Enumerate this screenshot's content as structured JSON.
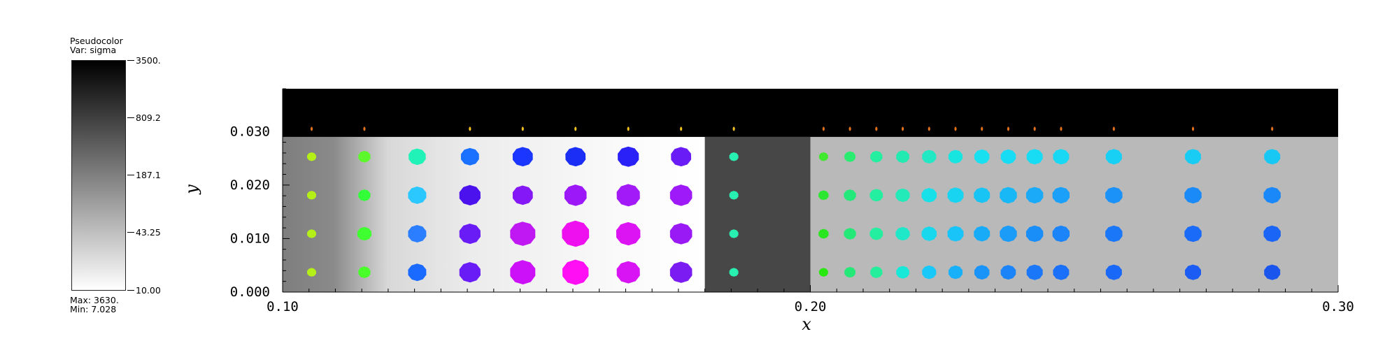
{
  "legend": {
    "title": "Pseudocolor",
    "var_label": "Var: sigma",
    "tick_labels": [
      "3500.",
      "809.2",
      "187.1",
      "43.25",
      "10.00"
    ],
    "max_label": "Max: 3630.",
    "min_label": "Min: 7.028"
  },
  "chart_data": {
    "type": "scatter",
    "title": "",
    "xlabel": "x",
    "ylabel": "y",
    "xlim": [
      0.1,
      0.3
    ],
    "ylim": [
      0.0,
      0.038
    ],
    "x_ticks": [
      "0.10",
      "0.20",
      "0.30"
    ],
    "y_ticks": [
      "0.000",
      "0.010",
      "0.020",
      "0.030"
    ],
    "grid": false,
    "background_regions": [
      {
        "x": [
          0.1,
          0.18
        ],
        "y": [
          0.0,
          0.029
        ],
        "fill": "gradient-gray-white"
      },
      {
        "x": [
          0.18,
          0.2
        ],
        "y": [
          0.0,
          0.029
        ],
        "fill": "#474747"
      },
      {
        "x": [
          0.2,
          0.3
        ],
        "y": [
          0.0,
          0.029
        ],
        "fill": "#b9b9b9"
      },
      {
        "x": [
          0.1,
          0.3
        ],
        "y": [
          0.029,
          0.038
        ],
        "fill": "#000000"
      }
    ],
    "columns": [
      {
        "x": 0.1055,
        "r": [
          0.9,
          0.9,
          0.9,
          0.9
        ],
        "colors": [
          "#b4f018",
          "#b4f018",
          "#b4f018",
          "#b4f018"
        ]
      },
      {
        "x": 0.1155,
        "r": [
          1.2,
          1.4,
          1.2,
          1.2
        ],
        "colors": [
          "#48ff2a",
          "#40ff30",
          "#32ff38",
          "#5cf82c"
        ]
      },
      {
        "x": 0.1255,
        "r": [
          1.8,
          1.8,
          1.8,
          1.7
        ],
        "colors": [
          "#1a6aff",
          "#2a7eff",
          "#2ac8ff",
          "#20f2b8"
        ]
      },
      {
        "x": 0.1355,
        "r": [
          2.1,
          2.1,
          2.1,
          1.8
        ],
        "colors": [
          "#6a1cf6",
          "#6a1cf6",
          "#4c12ee",
          "#1a70ff"
        ]
      },
      {
        "x": 0.1455,
        "r": [
          2.5,
          2.5,
          2.0,
          2.0
        ],
        "colors": [
          "#cc10f8",
          "#c018f2",
          "#8418f6",
          "#1a36ff"
        ]
      },
      {
        "x": 0.1555,
        "r": [
          2.6,
          2.7,
          2.2,
          2.0
        ],
        "colors": [
          "#ff10f4",
          "#ee10ee",
          "#9c18f8",
          "#1a2ef6"
        ]
      },
      {
        "x": 0.1655,
        "r": [
          2.3,
          2.4,
          2.3,
          2.1
        ],
        "colors": [
          "#d814f4",
          "#dc14f4",
          "#a21af8",
          "#2a20f8"
        ]
      },
      {
        "x": 0.1755,
        "r": [
          2.2,
          2.2,
          2.2,
          2.0
        ],
        "colors": [
          "#7a1cf2",
          "#9a1af6",
          "#9e1af8",
          "#6a1cf6"
        ]
      },
      {
        "x": 0.1855,
        "r": [
          0.9,
          0.9,
          0.9,
          0.9
        ],
        "colors": [
          "#28f0b0",
          "#28f0b0",
          "#28f0b0",
          "#28f0b0"
        ]
      },
      {
        "x": 0.2025,
        "r": [
          0.9,
          1.0,
          1.0,
          0.9
        ],
        "colors": [
          "#28e810",
          "#2ae61e",
          "#2ce630",
          "#40e830"
        ]
      },
      {
        "x": 0.2075,
        "r": [
          1.1,
          1.2,
          1.2,
          1.1
        ],
        "colors": [
          "#24e878",
          "#24e878",
          "#24e87a",
          "#2aec70"
        ]
      },
      {
        "x": 0.2125,
        "r": [
          1.2,
          1.3,
          1.3,
          1.2
        ],
        "colors": [
          "#24ee9c",
          "#24eea0",
          "#24eea0",
          "#24eea0"
        ]
      },
      {
        "x": 0.2175,
        "r": [
          1.3,
          1.4,
          1.4,
          1.3
        ],
        "colors": [
          "#18e8d8",
          "#1ee8c8",
          "#22eab8",
          "#22eab0"
        ]
      },
      {
        "x": 0.2225,
        "r": [
          1.4,
          1.5,
          1.5,
          1.4
        ],
        "colors": [
          "#18c8f8",
          "#18d8ee",
          "#18e0e8",
          "#22e8c4"
        ]
      },
      {
        "x": 0.2275,
        "r": [
          1.4,
          1.6,
          1.6,
          1.4
        ],
        "colors": [
          "#18b0f8",
          "#18c4f8",
          "#18d4f0",
          "#18e4e0"
        ]
      },
      {
        "x": 0.2325,
        "r": [
          1.5,
          1.6,
          1.6,
          1.5
        ],
        "colors": [
          "#1a94f8",
          "#18acf8",
          "#18c4f4",
          "#18e0f0"
        ]
      },
      {
        "x": 0.2375,
        "r": [
          1.5,
          1.7,
          1.7,
          1.5
        ],
        "colors": [
          "#1a84f8",
          "#1a9cf8",
          "#18b8f6",
          "#18dcf4"
        ]
      },
      {
        "x": 0.2425,
        "r": [
          1.6,
          1.7,
          1.7,
          1.6
        ],
        "colors": [
          "#1a78f8",
          "#1a8ef8",
          "#1aaaf8",
          "#18dcf4"
        ]
      },
      {
        "x": 0.2475,
        "r": [
          1.6,
          1.7,
          1.7,
          1.6
        ],
        "colors": [
          "#1a70f8",
          "#1a84f8",
          "#1aa0f8",
          "#18d8f4"
        ]
      },
      {
        "x": 0.2575,
        "r": [
          1.6,
          1.7,
          1.7,
          1.6
        ],
        "colors": [
          "#1a68f8",
          "#1a78f8",
          "#1a92f8",
          "#18d0f4"
        ]
      },
      {
        "x": 0.2725,
        "r": [
          1.6,
          1.7,
          1.7,
          1.6
        ],
        "colors": [
          "#1a5cf4",
          "#1a6cf8",
          "#1a8af8",
          "#18ccf4"
        ]
      },
      {
        "x": 0.2875,
        "r": [
          1.6,
          1.7,
          1.7,
          1.6
        ],
        "colors": [
          "#1a56ee",
          "#1a64f6",
          "#1a88f8",
          "#18c8f4"
        ]
      }
    ],
    "row_y": [
      0.0037,
      0.0109,
      0.0181,
      0.0253
    ],
    "top_marks_x": [
      0.1055,
      0.1155,
      0.1355,
      0.1455,
      0.1555,
      0.1655,
      0.1755,
      0.1855,
      0.2025,
      0.2075,
      0.2125,
      0.2175,
      0.2225,
      0.2275,
      0.2325,
      0.2375,
      0.2425,
      0.2475,
      0.2575,
      0.2725,
      0.2875
    ]
  }
}
